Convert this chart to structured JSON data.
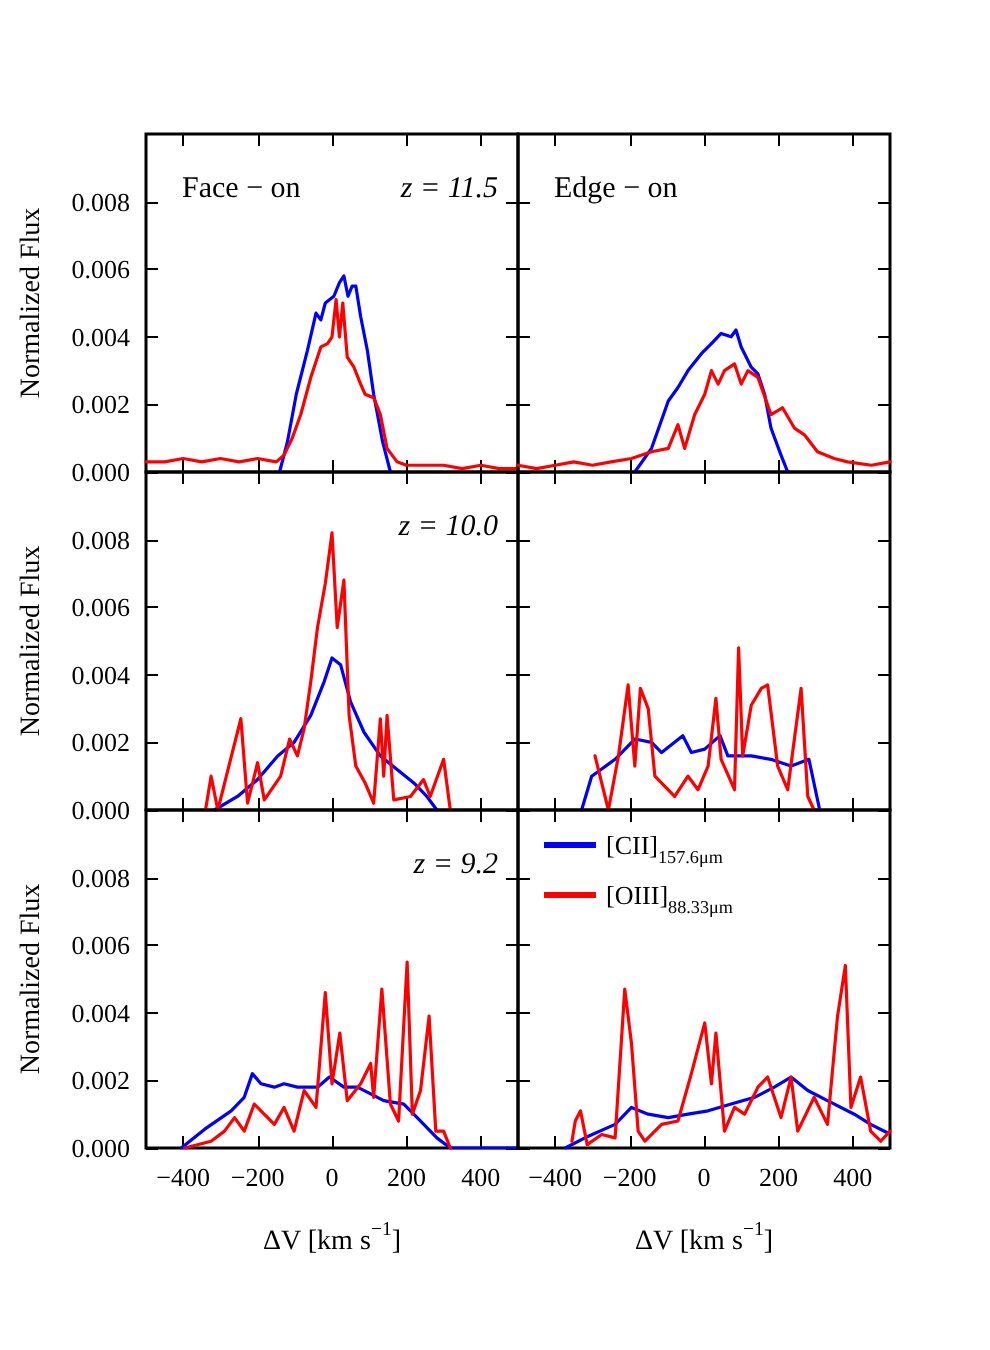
{
  "chart_data": [
    {
      "type": "line",
      "subtitle": "z = 11.5",
      "annotations": [
        "Face − on"
      ],
      "ylabel": "Normalized Flux",
      "xlim": [
        -500,
        500
      ],
      "ylim": [
        0,
        0.01
      ],
      "xticks": [
        -400,
        -200,
        0,
        200,
        400
      ],
      "yticks": [
        {
          "value": 0,
          "label": "0.000"
        },
        {
          "value": 0.002,
          "label": "0.002"
        },
        {
          "value": 0.004,
          "label": "0.004"
        },
        {
          "value": 0.006,
          "label": "0.006"
        },
        {
          "value": 0.008,
          "label": "0.008"
        }
      ],
      "tick_labels": "y",
      "marker": "none",
      "line_style": "solid",
      "series": [
        {
          "color": "#0000ff",
          "x": [
            -141,
            -120,
            -96,
            -66,
            -43,
            -30,
            -18,
            5,
            20,
            32,
            43,
            54,
            64,
            77,
            95,
            112,
            136,
            157
          ],
          "values": [
            0,
            0.00088,
            0.0023,
            0.0036,
            0.0047,
            0.0045,
            0.005,
            0.0052,
            0.0056,
            0.0058,
            0.0052,
            0.0055,
            0.0055,
            0.0046,
            0.0036,
            0.0023,
            0.0009,
            0
          ]
        },
        {
          "color": "#ff0000",
          "x": [
            -500,
            -450,
            -400,
            -350,
            -300,
            -250,
            -200,
            -150,
            -129,
            -107,
            -84,
            -57,
            -30,
            -12,
            0,
            11,
            20,
            29,
            41,
            59,
            77,
            89,
            112,
            130,
            148,
            175,
            200,
            250,
            300,
            350,
            400,
            450,
            500
          ],
          "values": [
            0.0003,
            0.0003,
            0.0004,
            0.0003,
            0.0004,
            0.0003,
            0.0004,
            0.0003,
            0.0005,
            0.001,
            0.0017,
            0.0028,
            0.0037,
            0.0038,
            0.004,
            0.0051,
            0.004,
            0.005,
            0.0034,
            0.0031,
            0.0026,
            0.0023,
            0.0022,
            0.0017,
            0.0007,
            0.0003,
            0.0002,
            0.0002,
            0.0002,
            0.0001,
            0.0002,
            0.0001,
            0.0001
          ]
        }
      ]
    },
    {
      "type": "line",
      "annotations": [
        "Edge − on"
      ],
      "xlim": [
        -500,
        500
      ],
      "ylim": [
        0,
        0.01
      ],
      "xticks": [
        -400,
        -200,
        0,
        200,
        400
      ],
      "yticks": [
        {
          "value": 0,
          "label": null
        },
        {
          "value": 0.002,
          "label": null
        },
        {
          "value": 0.004,
          "label": null
        },
        {
          "value": 0.006,
          "label": null
        },
        {
          "value": 0.008,
          "label": null
        }
      ],
      "tick_labels": false,
      "marker": "none",
      "line_style": "solid",
      "series": [
        {
          "color": "#0000ff",
          "x": [
            -186,
            -141,
            -96,
            -70,
            -43,
            -7,
            20,
            46,
            73,
            86,
            100,
            127,
            145,
            163,
            180,
            207,
            225
          ],
          "values": [
            0,
            0.0007,
            0.0021,
            0.0025,
            0.003,
            0.0035,
            0.0038,
            0.0041,
            0.004,
            0.0042,
            0.0037,
            0.0031,
            0.0029,
            0.0023,
            0.0013,
            0.0005,
            0
          ]
        },
        {
          "color": "#ff0000",
          "x": [
            -500,
            -450,
            -400,
            -350,
            -300,
            -250,
            -195,
            -141,
            -96,
            -70,
            -52,
            -25,
            2,
            20,
            38,
            55,
            82,
            100,
            118,
            145,
            180,
            211,
            243,
            270,
            305,
            350,
            386,
            450,
            500
          ],
          "values": [
            0.0002,
            0.0001,
            0.0002,
            0.0003,
            0.0002,
            0.0003,
            0.0004,
            0.0006,
            0.0007,
            0.0014,
            0.0007,
            0.0017,
            0.0023,
            0.003,
            0.0026,
            0.003,
            0.0032,
            0.0026,
            0.003,
            0.0028,
            0.0017,
            0.0019,
            0.0013,
            0.0011,
            0.0006,
            0.0004,
            0.0003,
            0.0002,
            0.0003
          ]
        }
      ]
    },
    {
      "type": "line",
      "subtitle": "z = 10.0",
      "ylabel": "Normalized Flux",
      "xlim": [
        -500,
        500
      ],
      "ylim": [
        0,
        0.01
      ],
      "xticks": [
        -400,
        -200,
        0,
        200,
        400
      ],
      "yticks": [
        {
          "value": 0,
          "label": "0.000"
        },
        {
          "value": 0.002,
          "label": "0.002"
        },
        {
          "value": 0.004,
          "label": "0.004"
        },
        {
          "value": 0.006,
          "label": "0.006"
        },
        {
          "value": 0.008,
          "label": "0.008"
        }
      ],
      "tick_labels": "y",
      "marker": "none",
      "line_style": "solid",
      "series": [
        {
          "color": "#0000ff",
          "x": [
            -316,
            -254,
            -200,
            -146,
            -102,
            -57,
            -21,
            0,
            23,
            50,
            86,
            130,
            175,
            220,
            255,
            282
          ],
          "values": [
            0,
            0.0004,
            0.0009,
            0.0016,
            0.002,
            0.0028,
            0.0038,
            0.0045,
            0.0043,
            0.0032,
            0.0023,
            0.0016,
            0.0012,
            0.0008,
            0.0004,
            0
          ]
        },
        {
          "color": "#ff0000",
          "x": [
            -340,
            -325,
            -307,
            -245,
            -227,
            -200,
            -182,
            -138,
            -114,
            -93,
            -75,
            -57,
            -39,
            -18,
            0,
            14,
            32,
            46,
            64,
            89,
            112,
            130,
            139,
            148,
            166,
            211,
            246,
            264,
            300,
            318
          ],
          "values": [
            0,
            0.001,
            0,
            0.0027,
            0.0002,
            0.0014,
            0.0003,
            0.001,
            0.0021,
            0.0016,
            0.0024,
            0.0038,
            0.0054,
            0.0067,
            0.0082,
            0.0054,
            0.0068,
            0.0028,
            0.0013,
            0.0008,
            0.0002,
            0.0027,
            0.001,
            0.0028,
            0.0003,
            0.0004,
            0.0009,
            0.0004,
            0.0015,
            0
          ]
        }
      ]
    },
    {
      "type": "line",
      "xlim": [
        -500,
        500
      ],
      "ylim": [
        0,
        0.01
      ],
      "xticks": [
        -400,
        -200,
        0,
        200,
        400
      ],
      "yticks": [
        {
          "value": 0,
          "label": null
        },
        {
          "value": 0.002,
          "label": null
        },
        {
          "value": 0.004,
          "label": null
        },
        {
          "value": 0.006,
          "label": null
        },
        {
          "value": 0.008,
          "label": null
        }
      ],
      "tick_labels": false,
      "marker": "none",
      "line_style": "solid",
      "series": [
        {
          "color": "#0000ff",
          "x": [
            -329,
            -302,
            -239,
            -186,
            -141,
            -114,
            -57,
            -34,
            2,
            43,
            64,
            127,
            180,
            234,
            282,
            311
          ],
          "values": [
            0,
            0.001,
            0.0015,
            0.0021,
            0.002,
            0.0017,
            0.0022,
            0.0017,
            0.0018,
            0.0022,
            0.0016,
            0.0016,
            0.0015,
            0.0013,
            0.0015,
            0
          ]
        },
        {
          "color": "#ff0000",
          "x": [
            -293,
            -257,
            -230,
            -204,
            -186,
            -171,
            -150,
            -132,
            -79,
            -43,
            -16,
            11,
            32,
            46,
            82,
            93,
            104,
            127,
            154,
            171,
            198,
            225,
            261,
            279,
            296,
            314
          ],
          "values": [
            0.0016,
            0,
            0.0016,
            0.0037,
            0.0013,
            0.0036,
            0.003,
            0.001,
            0.0004,
            0.001,
            0.0006,
            0.0013,
            0.0033,
            0.0015,
            0.0006,
            0.0048,
            0.0016,
            0.0031,
            0.0036,
            0.0037,
            0.0013,
            0.0006,
            0.0036,
            0.0004,
            0,
            0
          ]
        }
      ]
    },
    {
      "type": "line",
      "subtitle": "z = 9.2",
      "ylabel": "Normalized Flux",
      "xlabel": "ΔV [km s$^{−1}$]",
      "xlim": [
        -500,
        500
      ],
      "ylim": [
        0,
        0.01
      ],
      "xticks": [
        -400,
        -200,
        0,
        200,
        400
      ],
      "yticks": [
        {
          "value": 0,
          "label": "0.000"
        },
        {
          "value": 0.002,
          "label": "0.002"
        },
        {
          "value": 0.004,
          "label": "0.004"
        },
        {
          "value": 0.006,
          "label": "0.006"
        },
        {
          "value": 0.008,
          "label": "0.008"
        }
      ],
      "marker": "none",
      "line_style": "solid",
      "series": [
        {
          "color": "#0000ff",
          "x": [
            -405,
            -343,
            -271,
            -236,
            -214,
            -191,
            -155,
            -129,
            -93,
            -39,
            -7,
            32,
            68,
            104,
            139,
            193,
            229,
            282,
            318,
            400,
            500
          ],
          "values": [
            0,
            0.00055,
            0.0011,
            0.0015,
            0.0022,
            0.0019,
            0.0018,
            0.0019,
            0.0018,
            0.0018,
            0.0021,
            0.0018,
            0.0018,
            0.0016,
            0.0014,
            0.0013,
            0.0009,
            0.0003,
            0,
            0,
            0
          ]
        },
        {
          "color": "#ff0000",
          "x": [
            -396,
            -325,
            -289,
            -262,
            -236,
            -209,
            -191,
            -155,
            -129,
            -102,
            -75,
            -43,
            -18,
            0,
            21,
            41,
            77,
            104,
            112,
            134,
            157,
            179,
            202,
            216,
            238,
            261,
            279,
            300,
            318
          ],
          "values": [
            0,
            0.0002,
            0.0005,
            0.0009,
            0.0005,
            0.0013,
            0.0011,
            0.0007,
            0.0012,
            0.0005,
            0.0017,
            0.0012,
            0.0046,
            0.0019,
            0.0034,
            0.0014,
            0.0019,
            0.0025,
            0.0015,
            0.0047,
            0.0013,
            0.0008,
            0.0055,
            0.001,
            0.0017,
            0.0039,
            0.0005,
            0.0005,
            0
          ]
        }
      ]
    },
    {
      "type": "line",
      "xlabel": "ΔV [km s$^{−1}$]",
      "xlim": [
        -500,
        500
      ],
      "ylim": [
        0,
        0.01
      ],
      "xticks": [
        -400,
        -200,
        0,
        200,
        400
      ],
      "yticks": [
        {
          "value": 0,
          "label": null
        },
        {
          "value": 0.002,
          "label": null
        },
        {
          "value": 0.004,
          "label": null
        },
        {
          "value": 0.006,
          "label": null
        },
        {
          "value": 0.008,
          "label": null
        }
      ],
      "tick_labels": "x",
      "legend": "top left",
      "marker": "none",
      "line_style": "solid",
      "series": [
        {
          "name": "[CII]$_{157.6μm}$",
          "color": "#0000ff",
          "x": [
            -373,
            -311,
            -239,
            -195,
            -150,
            -96,
            -43,
            11,
            73,
            136,
            189,
            234,
            279,
            332,
            404,
            448,
            493
          ],
          "values": [
            0,
            0.00035,
            0.0007,
            0.0012,
            0.001,
            0.0009,
            0.001,
            0.0011,
            0.0013,
            0.0015,
            0.0018,
            0.0021,
            0.0017,
            0.0014,
            0.001,
            0.0007,
            0.00045
          ]
        },
        {
          "name": "[OIII]$_{88.33μm}$",
          "color": "#ff0000",
          "x": [
            -355,
            -346,
            -332,
            -314,
            -275,
            -239,
            -213,
            -195,
            -177,
            -159,
            -114,
            -70,
            -34,
            2,
            20,
            32,
            55,
            82,
            109,
            145,
            171,
            207,
            234,
            252,
            296,
            332,
            359,
            380,
            395,
            421,
            448,
            475,
            500
          ],
          "values": [
            0.0002,
            0.0008,
            0.0011,
            0.0001,
            0.0004,
            0.0003,
            0.0047,
            0.0031,
            0.0005,
            0.0002,
            0.0007,
            0.0008,
            0.0022,
            0.0037,
            0.0019,
            0.0034,
            0.0005,
            0.0012,
            0.001,
            0.0018,
            0.0021,
            0.0009,
            0.0021,
            0.0005,
            0.0015,
            0.0007,
            0.0039,
            0.0054,
            0.0012,
            0.0021,
            0.0005,
            0.0002,
            0.0005
          ]
        }
      ]
    }
  ]
}
